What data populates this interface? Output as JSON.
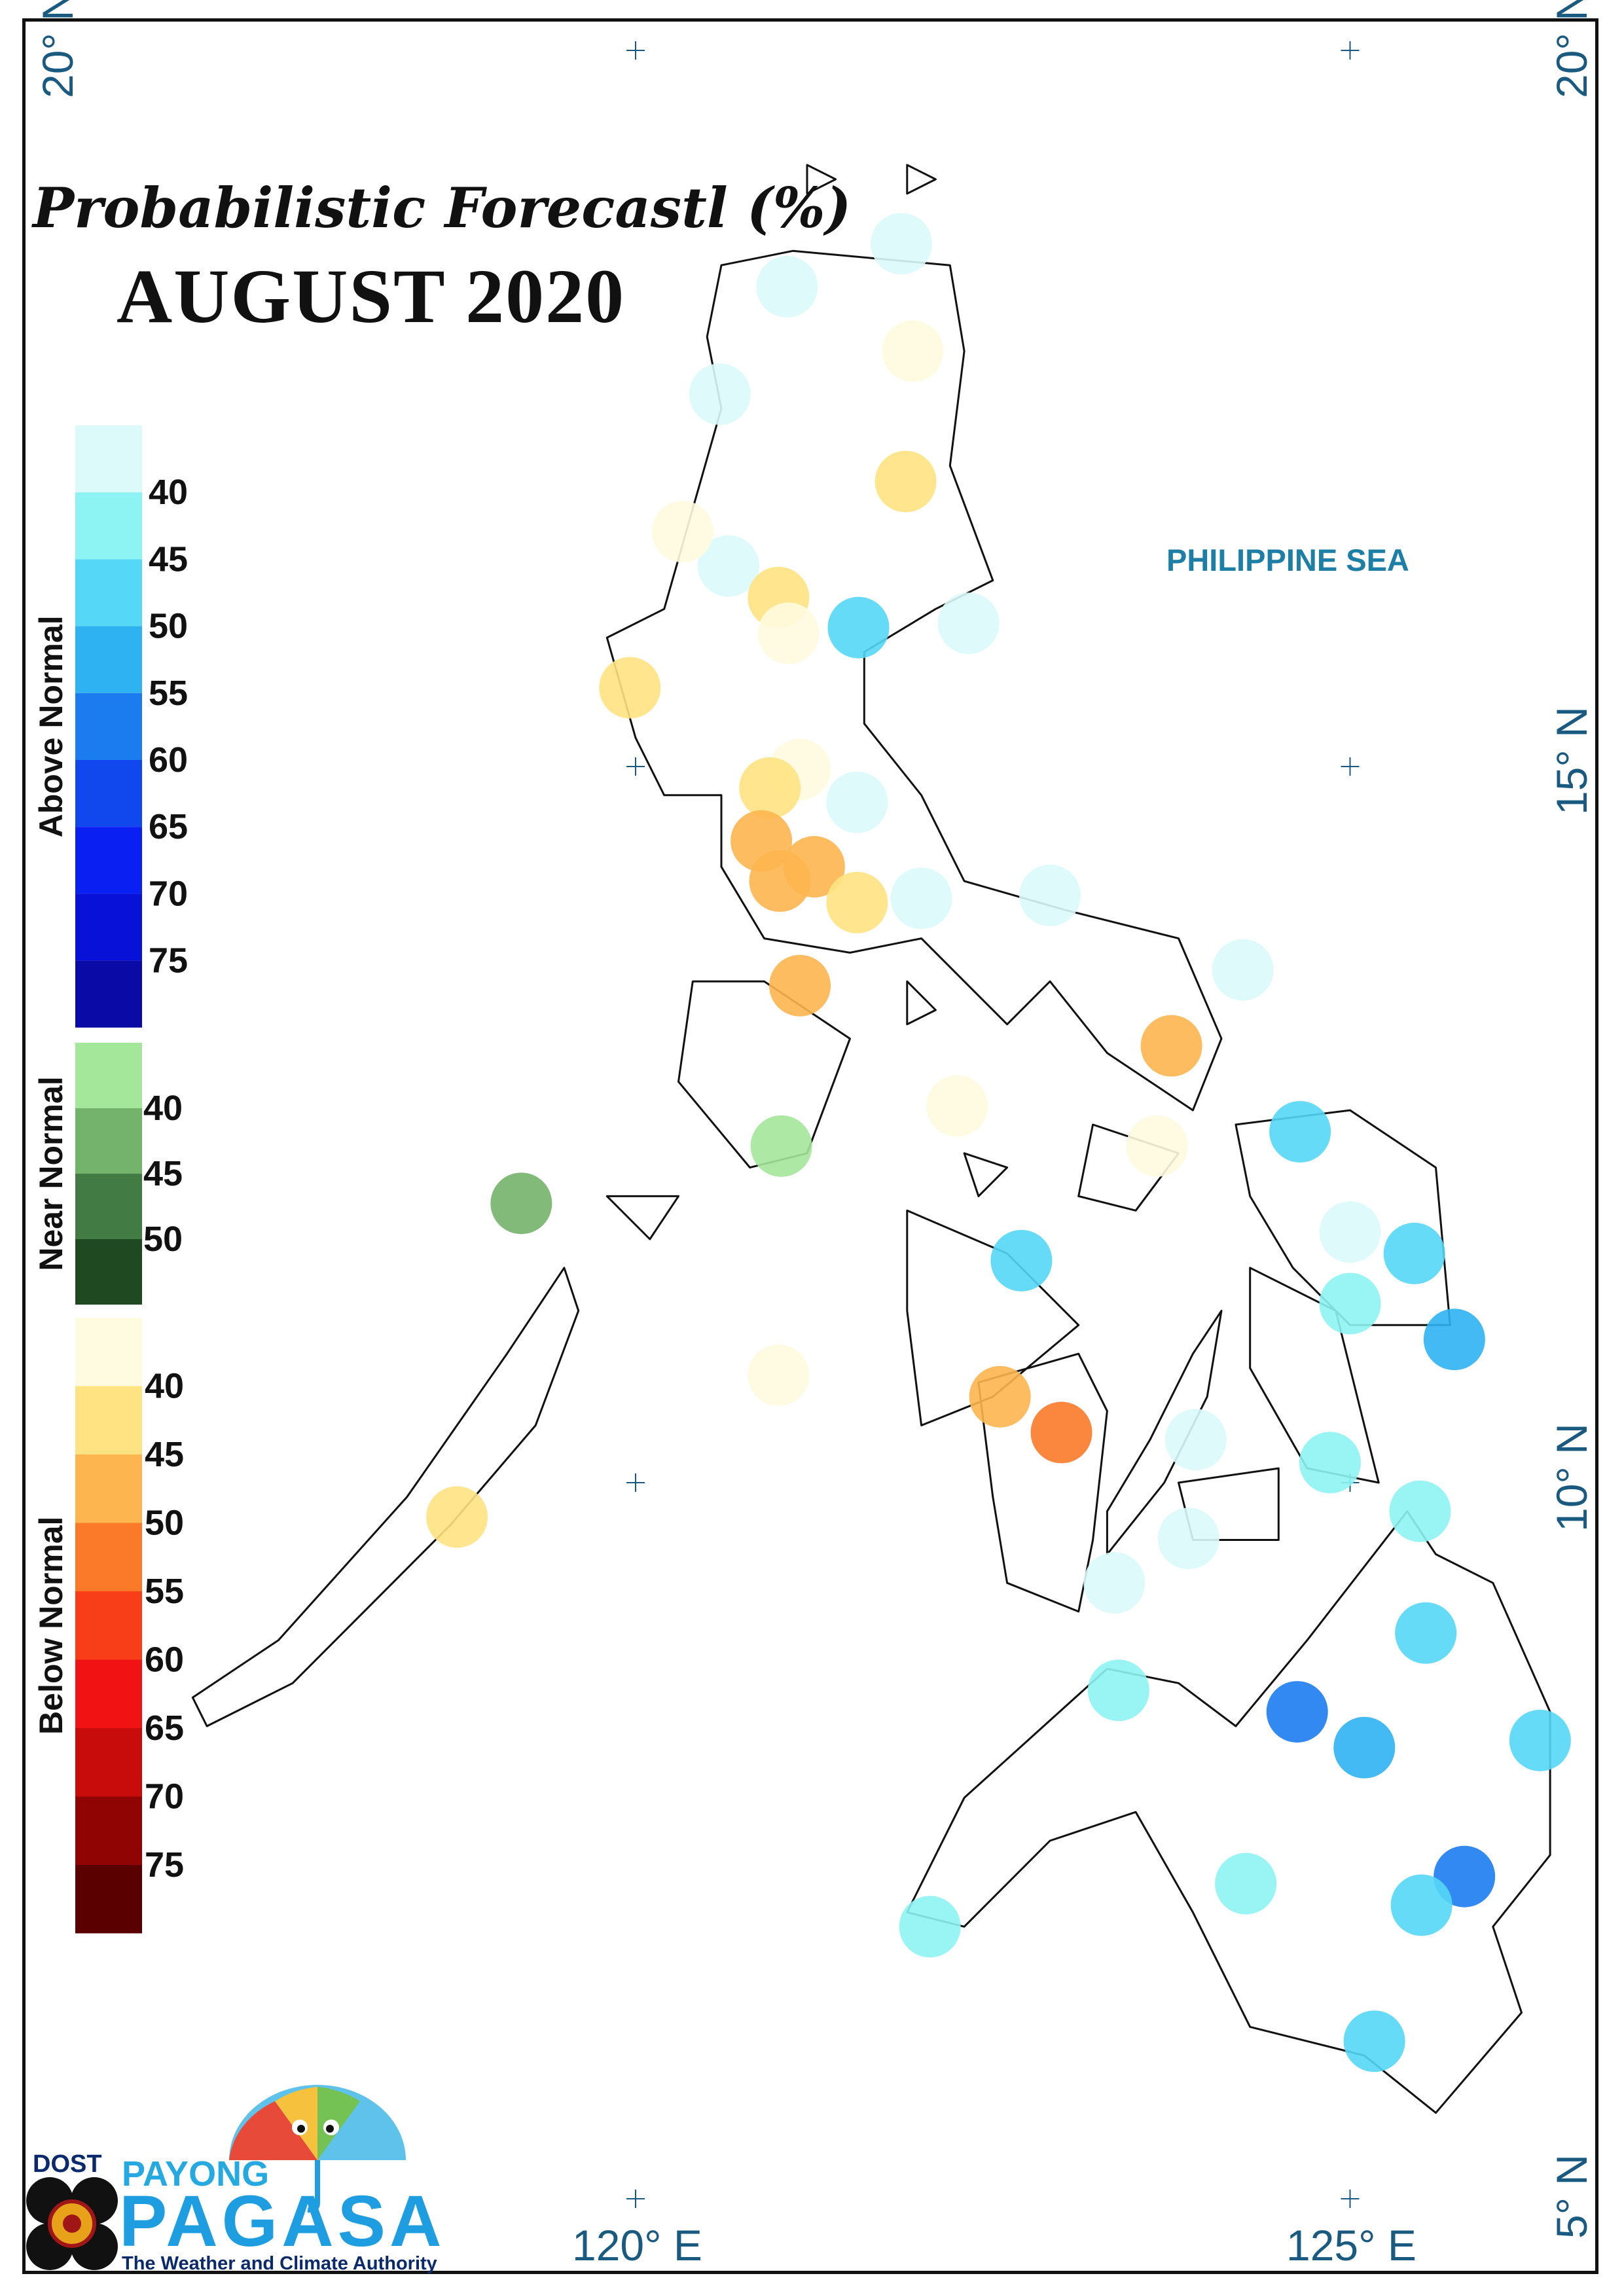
{
  "title": "Probabilistic Forecastl (%)",
  "subtitle": "AUGUST 2020",
  "sea_label": "PHILIPPINE SEA",
  "coordinates": {
    "lat_20_left": "20° N",
    "lat_20_right": "20° N",
    "lat_15": "15° N",
    "lat_10": "10° N",
    "lat_5": "5° N",
    "lon_120": "120° E",
    "lon_125": "125° E"
  },
  "legend": {
    "above_normal": {
      "label": "Above Normal",
      "ticks": [
        "40",
        "45",
        "50",
        "55",
        "60",
        "65",
        "70",
        "75"
      ],
      "colors": [
        "#dcfafa",
        "#8ef3f3",
        "#55d7f7",
        "#2fb2f2",
        "#1b7cf0",
        "#1148ee",
        "#0a1ff2",
        "#0711d8",
        "#0a0aa6"
      ]
    },
    "near_normal": {
      "label": "Near Normal",
      "ticks": [
        "40",
        "45",
        "50"
      ],
      "colors": [
        "#a4e69a",
        "#74b36b",
        "#437b44",
        "#1f4a21"
      ]
    },
    "below_normal": {
      "label": "Below Normal",
      "ticks": [
        "40",
        "45",
        "50",
        "55",
        "60",
        "65",
        "70",
        "75"
      ],
      "colors": [
        "#fffbe0",
        "#ffe382",
        "#fdb54f",
        "#fb7a2a",
        "#f73e18",
        "#f11214",
        "#c80b0b",
        "#900404",
        "#5a0000"
      ]
    }
  },
  "stations": [
    {
      "lon": 121.06,
      "lat": 18.35,
      "category": "above",
      "pct": 38
    },
    {
      "lon": 121.86,
      "lat": 18.65,
      "category": "above",
      "pct": 38
    },
    {
      "lon": 120.59,
      "lat": 17.6,
      "category": "above",
      "pct": 38
    },
    {
      "lon": 121.94,
      "lat": 17.9,
      "category": "below",
      "pct": 38
    },
    {
      "lon": 121.89,
      "lat": 16.99,
      "category": "below",
      "pct": 43
    },
    {
      "lon": 120.65,
      "lat": 16.4,
      "category": "above",
      "pct": 38
    },
    {
      "lon": 122.33,
      "lat": 16.0,
      "category": "above",
      "pct": 38
    },
    {
      "lon": 120.33,
      "lat": 16.64,
      "category": "below",
      "pct": 38
    },
    {
      "lon": 121.0,
      "lat": 16.18,
      "category": "below",
      "pct": 43
    },
    {
      "lon": 121.56,
      "lat": 15.97,
      "category": "above",
      "pct": 48
    },
    {
      "lon": 121.07,
      "lat": 15.93,
      "category": "below",
      "pct": 38
    },
    {
      "lon": 119.96,
      "lat": 15.55,
      "category": "below",
      "pct": 43
    },
    {
      "lon": 121.15,
      "lat": 14.98,
      "category": "below",
      "pct": 38
    },
    {
      "lon": 120.94,
      "lat": 14.85,
      "category": "below",
      "pct": 43
    },
    {
      "lon": 121.55,
      "lat": 14.75,
      "category": "above",
      "pct": 38
    },
    {
      "lon": 120.88,
      "lat": 14.48,
      "category": "below",
      "pct": 48
    },
    {
      "lon": 121.01,
      "lat": 14.2,
      "category": "below",
      "pct": 48
    },
    {
      "lon": 121.25,
      "lat": 14.3,
      "category": "below",
      "pct": 48
    },
    {
      "lon": 121.55,
      "lat": 14.05,
      "category": "below",
      "pct": 43
    },
    {
      "lon": 122.0,
      "lat": 14.08,
      "category": "above",
      "pct": 38
    },
    {
      "lon": 122.9,
      "lat": 14.1,
      "category": "above",
      "pct": 38
    },
    {
      "lon": 124.25,
      "lat": 13.58,
      "category": "above",
      "pct": 38
    },
    {
      "lon": 121.15,
      "lat": 13.47,
      "category": "below",
      "pct": 48
    },
    {
      "lon": 123.75,
      "lat": 13.05,
      "category": "below",
      "pct": 48
    },
    {
      "lon": 122.25,
      "lat": 12.63,
      "category": "below",
      "pct": 38
    },
    {
      "lon": 123.65,
      "lat": 12.35,
      "category": "below",
      "pct": 38
    },
    {
      "lon": 124.65,
      "lat": 12.45,
      "category": "above",
      "pct": 48
    },
    {
      "lon": 121.02,
      "lat": 12.35,
      "category": "near",
      "pct": 38
    },
    {
      "lon": 119.2,
      "lat": 11.95,
      "category": "near",
      "pct": 43
    },
    {
      "lon": 125.0,
      "lat": 11.75,
      "category": "above",
      "pct": 38
    },
    {
      "lon": 125.45,
      "lat": 11.6,
      "category": "above",
      "pct": 48
    },
    {
      "lon": 122.7,
      "lat": 11.55,
      "category": "above",
      "pct": 48
    },
    {
      "lon": 125.0,
      "lat": 11.25,
      "category": "above",
      "pct": 43
    },
    {
      "lon": 125.73,
      "lat": 11.0,
      "category": "above",
      "pct": 53
    },
    {
      "lon": 121.0,
      "lat": 10.75,
      "category": "below",
      "pct": 38
    },
    {
      "lon": 122.55,
      "lat": 10.6,
      "category": "below",
      "pct": 48
    },
    {
      "lon": 122.98,
      "lat": 10.35,
      "category": "below",
      "pct": 53
    },
    {
      "lon": 123.92,
      "lat": 10.3,
      "category": "above",
      "pct": 38
    },
    {
      "lon": 124.86,
      "lat": 10.14,
      "category": "above",
      "pct": 43
    },
    {
      "lon": 125.49,
      "lat": 9.8,
      "category": "above",
      "pct": 43
    },
    {
      "lon": 118.75,
      "lat": 9.76,
      "category": "below",
      "pct": 43
    },
    {
      "lon": 123.87,
      "lat": 9.61,
      "category": "above",
      "pct": 38
    },
    {
      "lon": 123.35,
      "lat": 9.3,
      "category": "above",
      "pct": 38
    },
    {
      "lon": 125.53,
      "lat": 8.95,
      "category": "above",
      "pct": 48
    },
    {
      "lon": 123.38,
      "lat": 8.55,
      "category": "above",
      "pct": 43
    },
    {
      "lon": 124.63,
      "lat": 8.4,
      "category": "above",
      "pct": 58
    },
    {
      "lon": 125.1,
      "lat": 8.15,
      "category": "above",
      "pct": 53
    },
    {
      "lon": 126.33,
      "lat": 8.2,
      "category": "above",
      "pct": 48
    },
    {
      "lon": 124.27,
      "lat": 7.2,
      "category": "above",
      "pct": 43
    },
    {
      "lon": 125.8,
      "lat": 7.25,
      "category": "above",
      "pct": 58
    },
    {
      "lon": 125.5,
      "lat": 7.05,
      "category": "above",
      "pct": 48
    },
    {
      "lon": 122.06,
      "lat": 6.9,
      "category": "above",
      "pct": 43
    },
    {
      "lon": 125.17,
      "lat": 6.1,
      "category": "above",
      "pct": 48
    }
  ],
  "logo": {
    "dost": "DOST",
    "payong": "PAYONG",
    "pagasa": "PAGASA",
    "tagline": "The Weather and Climate Authority"
  }
}
